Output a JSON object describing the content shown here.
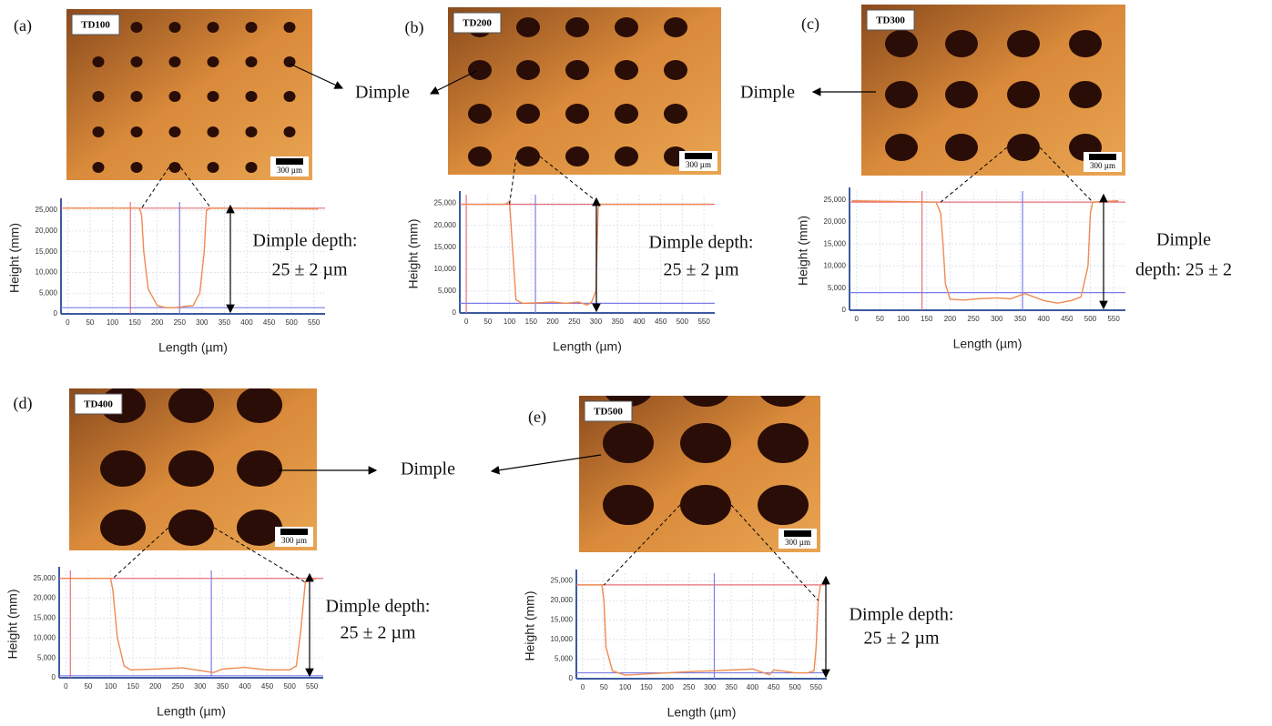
{
  "dimple_labels": [
    "Dimple",
    "Dimple",
    "Dimple"
  ],
  "chart_data": [
    {
      "type": "line",
      "panel": "(a)",
      "image_label": "TD100",
      "scale_bar": "300 µm",
      "annotation": [
        "Dimple depth:",
        "25 ± 2 µm"
      ],
      "xlabel": "Length (µm)",
      "ylabel": "Height (mm)",
      "x": [
        -10,
        160,
        165,
        170,
        180,
        200,
        220,
        240,
        260,
        280,
        295,
        305,
        310,
        320,
        560
      ],
      "series": [
        {
          "color": "#f08a50",
          "values": [
            25500,
            25500,
            24000,
            15000,
            6000,
            2000,
            1500,
            1500,
            1800,
            2000,
            5000,
            15000,
            25000,
            25500,
            25300
          ]
        }
      ],
      "cursors": [
        {
          "axis": "x",
          "value": 140,
          "color": "#e8707a"
        },
        {
          "axis": "y",
          "value": 25500,
          "color": "#e8707a"
        },
        {
          "axis": "x",
          "value": 250,
          "color": "#7d7de8"
        },
        {
          "axis": "y",
          "value": 1500,
          "color": "#7d7de8"
        }
      ],
      "xlim": [
        -15,
        575
      ],
      "xticks": [
        0,
        50,
        100,
        150,
        200,
        250,
        300,
        350,
        400,
        450,
        500,
        550
      ],
      "ylim": [
        0,
        27000
      ],
      "yticks": [
        0,
        {
          "value": 5000,
          "label": "5,000"
        },
        {
          "value": 10000,
          "label": "10,000"
        },
        {
          "value": 15000,
          "label": "15,000"
        },
        {
          "value": 20000,
          "label": "20,000"
        },
        {
          "value": 25000,
          "label": "25,000"
        }
      ],
      "grid": true
    },
    {
      "type": "line",
      "panel": "(b)",
      "image_label": "TD200",
      "scale_bar": "300 µm",
      "annotation": [
        "Dimple depth:",
        "25 ± 2 µm"
      ],
      "xlabel": "Length (µm)",
      "ylabel": "Height (mm)",
      "x": [
        -10,
        90,
        100,
        105,
        115,
        130,
        160,
        200,
        230,
        260,
        280,
        290,
        300,
        305,
        310,
        560
      ],
      "series": [
        {
          "color": "#f08a50",
          "values": [
            24800,
            24800,
            25500,
            18000,
            3000,
            2200,
            2300,
            2500,
            2200,
            2500,
            1800,
            2500,
            5000,
            24000,
            24800,
            24800
          ]
        }
      ],
      "cursors": [
        {
          "axis": "x",
          "value": 0,
          "color": "#e8707a"
        },
        {
          "axis": "y",
          "value": 24800,
          "color": "#e8707a"
        },
        {
          "axis": "x",
          "value": 160,
          "color": "#7d7de8"
        },
        {
          "axis": "y",
          "value": 2200,
          "color": "#7d7de8"
        }
      ],
      "xlim": [
        -15,
        575
      ],
      "xticks": [
        0,
        50,
        100,
        150,
        200,
        250,
        300,
        350,
        400,
        450,
        500,
        550
      ],
      "ylim": [
        0,
        27000
      ],
      "yticks": [
        0,
        {
          "value": 5000,
          "label": "5,000"
        },
        {
          "value": 10000,
          "label": "10,000"
        },
        {
          "value": 15000,
          "label": "15,000"
        },
        {
          "value": 20000,
          "label": "20,000"
        },
        {
          "value": 25000,
          "label": "25,000"
        }
      ],
      "grid": true
    },
    {
      "type": "line",
      "panel": "(c)",
      "image_label": "TD300",
      "scale_bar": "300 µm",
      "annotation": [
        "Dimple",
        "depth:  25 ± 2"
      ],
      "xlabel": "Length (µm)",
      "ylabel": "Height (mm)",
      "x": [
        -10,
        170,
        180,
        185,
        190,
        200,
        230,
        260,
        300,
        330,
        360,
        400,
        430,
        460,
        480,
        495,
        500,
        505,
        560
      ],
      "series": [
        {
          "color": "#f08a50",
          "values": [
            24800,
            24500,
            22000,
            15000,
            6000,
            2500,
            2300,
            2600,
            2800,
            2600,
            3800,
            2200,
            1600,
            2200,
            3000,
            10000,
            22000,
            24500,
            24800
          ]
        }
      ],
      "cursors": [
        {
          "axis": "x",
          "value": 140,
          "color": "#e8707a"
        },
        {
          "axis": "y",
          "value": 24500,
          "color": "#e8707a"
        },
        {
          "axis": "x",
          "value": 355,
          "color": "#7d7de8"
        },
        {
          "axis": "y",
          "value": 4000,
          "color": "#7d7de8"
        }
      ],
      "xlim": [
        -15,
        575
      ],
      "xticks": [
        0,
        50,
        100,
        150,
        200,
        250,
        300,
        350,
        400,
        450,
        500,
        550
      ],
      "ylim": [
        0,
        27000
      ],
      "yticks": [
        0,
        {
          "value": 5000,
          "label": "5,000"
        },
        {
          "value": 10000,
          "label": "10,000"
        },
        {
          "value": 15000,
          "label": "15,000"
        },
        {
          "value": 20000,
          "label": "20,000"
        },
        {
          "value": 25000,
          "label": "25,000"
        }
      ],
      "grid": true
    },
    {
      "type": "line",
      "panel": "(d)",
      "image_label": "TD400",
      "scale_bar": "300 µm",
      "annotation": [
        "Dimple depth:",
        "25 ± 2 µm"
      ],
      "xlabel": "Length (µm)",
      "ylabel": "Height (mm)",
      "x": [
        -10,
        100,
        105,
        115,
        130,
        145,
        200,
        260,
        300,
        330,
        350,
        400,
        450,
        500,
        515,
        525,
        535,
        560
      ],
      "series": [
        {
          "color": "#f08a50",
          "values": [
            25000,
            25000,
            22000,
            10000,
            3000,
            2000,
            2200,
            2500,
            1800,
            1300,
            2200,
            2600,
            2000,
            2000,
            3000,
            12000,
            24000,
            25000
          ]
        }
      ],
      "cursors": [
        {
          "axis": "x",
          "value": 10,
          "color": "#e8707a"
        },
        {
          "axis": "y",
          "value": 25000,
          "color": "#e8707a"
        },
        {
          "axis": "x",
          "value": 325,
          "color": "#7d7de8"
        },
        {
          "axis": "y",
          "value": 500,
          "color": "#7d7de8"
        }
      ],
      "xlim": [
        -15,
        575
      ],
      "xticks": [
        0,
        50,
        100,
        150,
        200,
        250,
        300,
        350,
        400,
        450,
        500,
        550
      ],
      "ylim": [
        0,
        27000
      ],
      "yticks": [
        0,
        {
          "value": 5000,
          "label": "5,000"
        },
        {
          "value": 10000,
          "label": "10,000"
        },
        {
          "value": 15000,
          "label": "15,000"
        },
        {
          "value": 20000,
          "label": "20,000"
        },
        {
          "value": 25000,
          "label": "25,000"
        }
      ],
      "grid": true
    },
    {
      "type": "line",
      "panel": "(e)",
      "image_label": "TD500",
      "scale_bar": "300 µm",
      "annotation": [
        "Dimple depth:",
        "25 ± 2 µm"
      ],
      "xlabel": "Length (µm)",
      "ylabel": "Height (mm)",
      "x": [
        -10,
        45,
        50,
        55,
        70,
        100,
        150,
        200,
        250,
        300,
        350,
        400,
        440,
        450,
        470,
        500,
        530,
        545,
        550,
        555,
        560
      ],
      "series": [
        {
          "color": "#f08a50",
          "values": [
            24000,
            24000,
            20000,
            8000,
            2000,
            900,
            1200,
            1500,
            1800,
            2000,
            2200,
            2500,
            1000,
            2200,
            2000,
            1500,
            1500,
            2000,
            8000,
            20000,
            24000
          ]
        }
      ],
      "cursors": [
        {
          "axis": "y",
          "value": 24000,
          "color": "#e8707a"
        },
        {
          "axis": "x",
          "value": 310,
          "color": "#7d7de8"
        },
        {
          "axis": "y",
          "value": 1500,
          "color": "#7d7de8"
        }
      ],
      "xlim": [
        -15,
        575
      ],
      "xticks": [
        0,
        50,
        100,
        150,
        200,
        250,
        300,
        350,
        400,
        450,
        500,
        550
      ],
      "ylim": [
        0,
        27000
      ],
      "yticks": [
        0,
        {
          "value": 5000,
          "label": "5,000"
        },
        {
          "value": 10000,
          "label": "10,000"
        },
        {
          "value": 15000,
          "label": "15,000"
        },
        {
          "value": 20000,
          "label": "20,000"
        },
        {
          "value": 25000,
          "label": "25,000"
        }
      ],
      "grid": true
    }
  ]
}
